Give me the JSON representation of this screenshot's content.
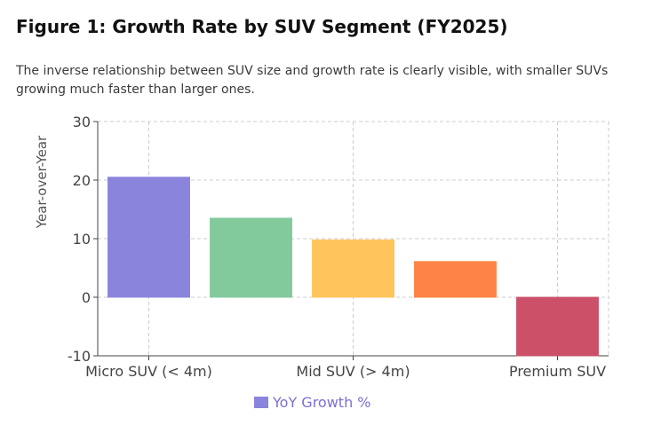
{
  "header": {
    "title": "Figure 1: Growth Rate by SUV Segment (FY2025)",
    "subtitle": "The inverse relationship between SUV size and growth rate is clearly visible, with smaller SUVs growing much faster than larger ones."
  },
  "chart_data": {
    "type": "bar",
    "categories": [
      "Micro SUV (< 4m)",
      "",
      "Mid SUV (> 4m)",
      "",
      "Premium SUV"
    ],
    "series": [
      {
        "name": "YoY Growth %",
        "values": [
          20.5,
          13.5,
          9.8,
          6.1,
          -10.0
        ]
      }
    ],
    "bar_colors": [
      "#8b84dc",
      "#82c99c",
      "#fec55c",
      "#fd8446",
      "#cb5068"
    ],
    "ylabel": "Year-over-Year",
    "xlabel": "",
    "ylim": [
      -10,
      30
    ],
    "yticks": [
      -10,
      0,
      10,
      20,
      30
    ],
    "grid": true,
    "legend_position": "bottom-center",
    "legend_color": "#8b84dc",
    "legend_text_color": "#7a70d6"
  }
}
